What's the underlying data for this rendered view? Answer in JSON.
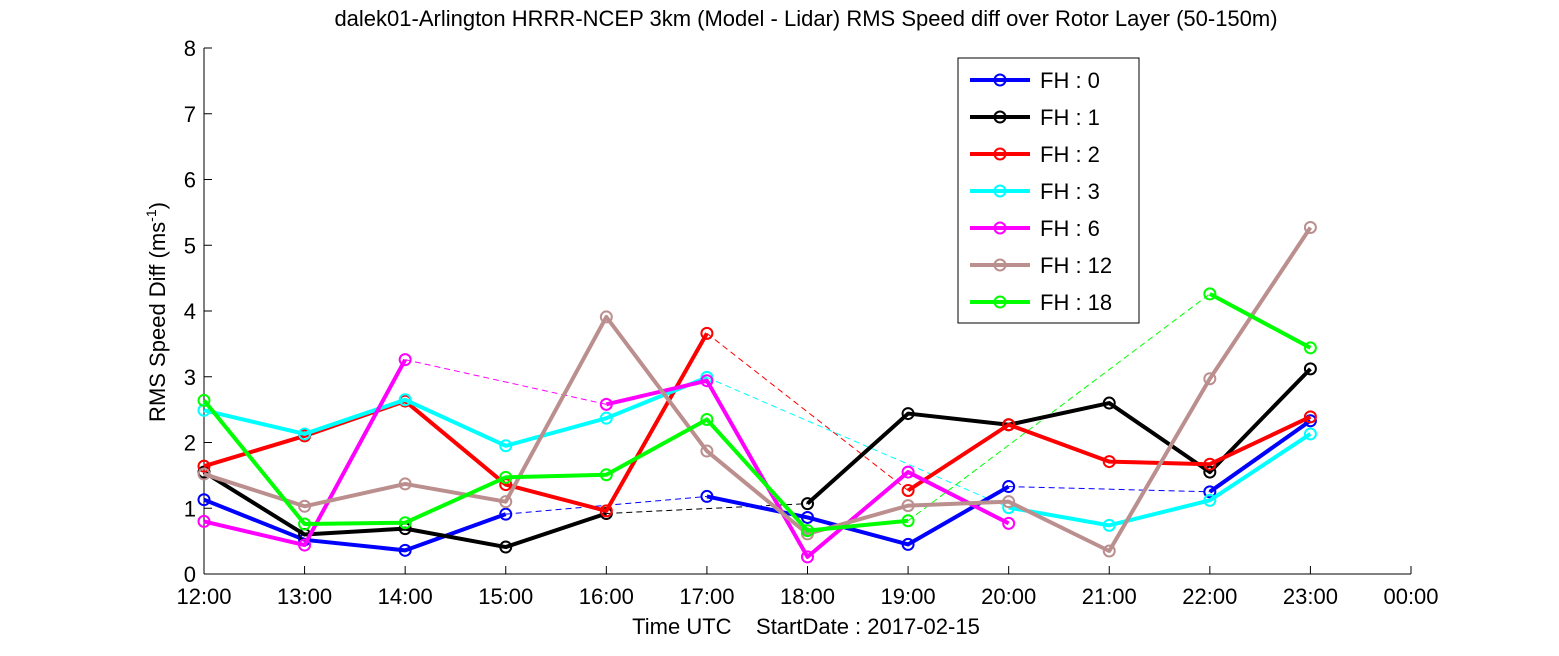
{
  "chart_data": {
    "type": "line",
    "title": "dalek01-Arlington HRRR-NCEP 3km (Model - Lidar) RMS Speed diff over Rotor Layer (50-150m)",
    "xlabel": "Time UTC    StartDate : 2017-02-15",
    "ylabel": {
      "main": "RMS Speed Diff (ms",
      "sup": "-1",
      "close": ")"
    },
    "x_tick_labels": [
      "12:00",
      "13:00",
      "14:00",
      "15:00",
      "16:00",
      "17:00",
      "18:00",
      "19:00",
      "20:00",
      "21:00",
      "22:00",
      "23:00",
      "00:00"
    ],
    "y_ticks": [
      0,
      1,
      2,
      3,
      4,
      5,
      6,
      7,
      8
    ],
    "xlim": [
      0,
      12
    ],
    "ylim": [
      0,
      8
    ],
    "legend_position": "top-right",
    "series": [
      {
        "name": "FH : 0",
        "color": "#0000ff",
        "values": [
          1.13,
          0.52,
          0.36,
          0.91,
          null,
          1.18,
          0.86,
          0.45,
          1.33,
          null,
          1.25,
          2.33
        ]
      },
      {
        "name": "FH : 1",
        "color": "#000000",
        "values": [
          1.55,
          0.6,
          0.69,
          0.41,
          0.92,
          null,
          1.07,
          2.44,
          2.27,
          2.6,
          1.55,
          3.12
        ]
      },
      {
        "name": "FH : 2",
        "color": "#ff0000",
        "values": [
          1.64,
          2.1,
          2.63,
          1.36,
          0.96,
          3.66,
          null,
          1.27,
          2.27,
          1.71,
          1.67,
          2.39
        ]
      },
      {
        "name": "FH : 3",
        "color": "#00ffff",
        "values": [
          2.49,
          2.13,
          2.65,
          1.95,
          2.37,
          2.99,
          null,
          null,
          1.01,
          0.74,
          1.12,
          2.13
        ]
      },
      {
        "name": "FH : 6",
        "color": "#ff00ff",
        "values": [
          0.8,
          0.44,
          3.26,
          null,
          2.58,
          2.94,
          0.26,
          1.55,
          0.77,
          null,
          null,
          null
        ]
      },
      {
        "name": "FH : 12",
        "color": "#bc8f8f",
        "values": [
          1.52,
          1.03,
          1.37,
          1.1,
          3.91,
          1.87,
          0.61,
          1.04,
          1.1,
          0.35,
          2.97,
          5.27
        ]
      },
      {
        "name": "FH : 18",
        "color": "#00ff00",
        "values": [
          2.64,
          0.76,
          0.78,
          1.47,
          1.51,
          2.35,
          0.66,
          0.81,
          null,
          null,
          4.26,
          3.44
        ]
      }
    ]
  }
}
